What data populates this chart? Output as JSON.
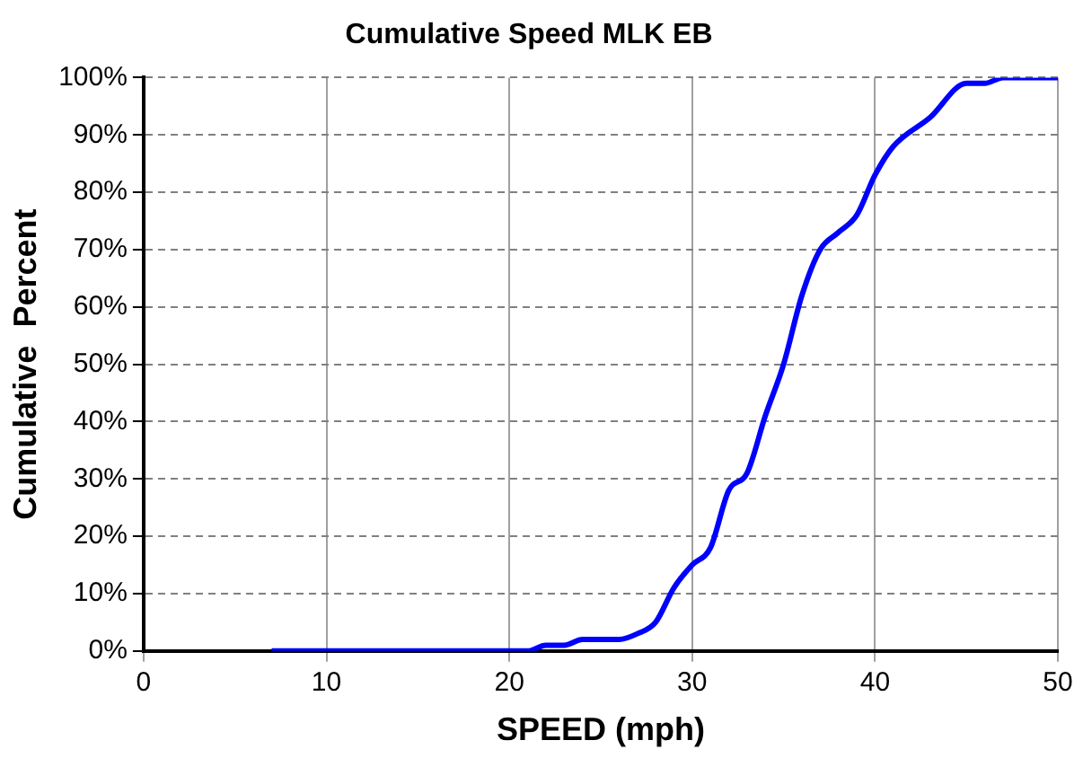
{
  "chart_data": {
    "type": "line",
    "title": "Cumulative Speed MLK EB",
    "xlabel": "SPEED (mph)",
    "ylabel": "Cumulative  Percent",
    "series": [
      {
        "color": "#0000ff",
        "x": [
          7,
          21,
          22,
          23,
          24,
          26,
          27,
          28,
          29,
          30,
          31,
          32,
          33,
          34,
          35,
          36,
          37,
          38,
          39,
          40,
          41,
          43,
          45,
          46,
          47,
          50
        ],
        "values": [
          0,
          0,
          1,
          1,
          2,
          2,
          3,
          5,
          11,
          15,
          18,
          28,
          31,
          41,
          50,
          62,
          70,
          73,
          76,
          83,
          88,
          93,
          99,
          99,
          100,
          100
        ]
      }
    ],
    "xlim": [
      0,
      50
    ],
    "xticks": [
      0,
      10,
      20,
      30,
      40,
      50
    ],
    "ylim": [
      0,
      100
    ],
    "yticks": [
      {
        "value": 0,
        "label": "0%"
      },
      {
        "value": 10,
        "label": "10%"
      },
      {
        "value": 20,
        "label": "20%"
      },
      {
        "value": 30,
        "label": "30%"
      },
      {
        "value": 40,
        "label": "40%"
      },
      {
        "value": 50,
        "label": "50%"
      },
      {
        "value": 60,
        "label": "60%"
      },
      {
        "value": 70,
        "label": "70%"
      },
      {
        "value": 80,
        "label": "80%"
      },
      {
        "value": 90,
        "label": "90%"
      },
      {
        "value": 100,
        "label": "100%"
      }
    ],
    "grid": true,
    "marker": "none",
    "line_style": "solid",
    "legend": false
  }
}
